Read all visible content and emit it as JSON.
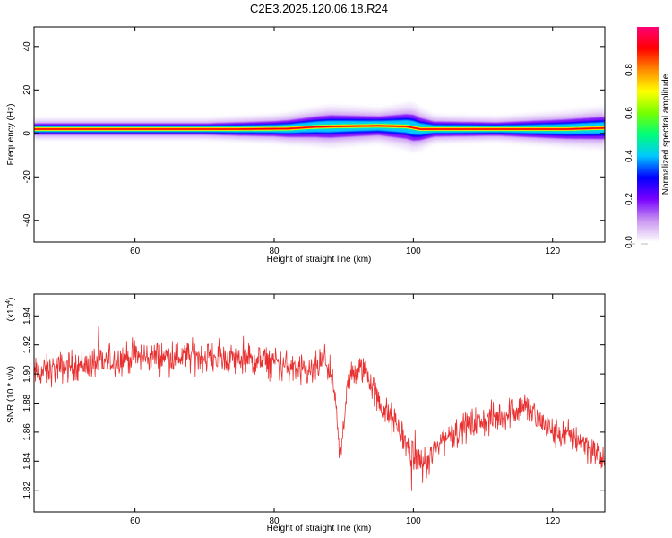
{
  "title": "C2E3.2025.120.06.18.R24",
  "chart_data": [
    {
      "type": "heatmap",
      "xlabel": "Height of straight line (km)",
      "ylabel": "Frequency (Hz)",
      "xlim": [
        45.5,
        127.5
      ],
      "ylim": [
        -50,
        49
      ],
      "xticks": [
        "60",
        "80",
        "100",
        "120"
      ],
      "xtick_values": [
        60,
        80,
        100,
        120
      ],
      "yticks": [
        "40",
        "20",
        "0",
        "-20",
        "-40"
      ],
      "ytick_values": [
        40,
        20,
        0,
        -20,
        -40
      ],
      "colorbar": {
        "label": "Normalized spectral amplitude",
        "range": [
          0,
          1
        ],
        "ticks": [
          "0.0",
          "0.2",
          "0.4",
          "0.6",
          "0.8"
        ],
        "tick_values": [
          0.0,
          0.2,
          0.4,
          0.6,
          0.8
        ],
        "colors": [
          "#ffffff",
          "#c896f0",
          "#7800ff",
          "#0000ff",
          "#00c8ff",
          "#00ff78",
          "#78ff00",
          "#ffff00",
          "#ff8c00",
          "#ff0000",
          "#ff0078"
        ]
      },
      "band": {
        "center_hz": [
          [
            46,
            2
          ],
          [
            60,
            2
          ],
          [
            75,
            2
          ],
          [
            82,
            2.2
          ],
          [
            86,
            3
          ],
          [
            90,
            3.3
          ],
          [
            95,
            3.5
          ],
          [
            99,
            3.2
          ],
          [
            101,
            2
          ],
          [
            110,
            2
          ],
          [
            118,
            2
          ],
          [
            122,
            2
          ],
          [
            127.5,
            2.5
          ]
        ],
        "halo_hz": [
          [
            46,
            3
          ],
          [
            70,
            3
          ],
          [
            80,
            4
          ],
          [
            88,
            6
          ],
          [
            95,
            5
          ],
          [
            100,
            7
          ],
          [
            103,
            4
          ],
          [
            112,
            3.5
          ],
          [
            118,
            4.5
          ],
          [
            124,
            5.5
          ],
          [
            127.5,
            6
          ]
        ]
      }
    },
    {
      "type": "line",
      "xlabel": "Height of straight line (km)",
      "ylabel": "SNR (10 * v/v)",
      "scale_label": "(x10",
      "scale_exp": "4",
      "xlim": [
        45.5,
        127.5
      ],
      "ylim": [
        1.805,
        1.955
      ],
      "xticks": [
        "60",
        "80",
        "100",
        "120"
      ],
      "xtick_values": [
        60,
        80,
        100,
        120
      ],
      "yticks": [
        "1.94",
        "1.92",
        "1.90",
        "1.88",
        "1.86",
        "1.84",
        "1.82"
      ],
      "ytick_values": [
        1.94,
        1.92,
        1.9,
        1.88,
        1.86,
        1.84,
        1.82
      ],
      "series": [
        {
          "color": "#e83030",
          "trend": [
            [
              45.5,
              1.9
            ],
            [
              50,
              1.905
            ],
            [
              55,
              1.908
            ],
            [
              60,
              1.912
            ],
            [
              65,
              1.912
            ],
            [
              70,
              1.912
            ],
            [
              75,
              1.91
            ],
            [
              80,
              1.908
            ],
            [
              85,
              1.9
            ],
            [
              87.5,
              1.91
            ],
            [
              88.5,
              1.89
            ],
            [
              89.5,
              1.84
            ],
            [
              90.5,
              1.895
            ],
            [
              93,
              1.905
            ],
            [
              95,
              1.88
            ],
            [
              98,
              1.862
            ],
            [
              100,
              1.842
            ],
            [
              102,
              1.838
            ],
            [
              104,
              1.855
            ],
            [
              108,
              1.865
            ],
            [
              112,
              1.87
            ],
            [
              116,
              1.878
            ],
            [
              120,
              1.86
            ],
            [
              124,
              1.855
            ],
            [
              127.5,
              1.84
            ]
          ]
        }
      ]
    }
  ]
}
